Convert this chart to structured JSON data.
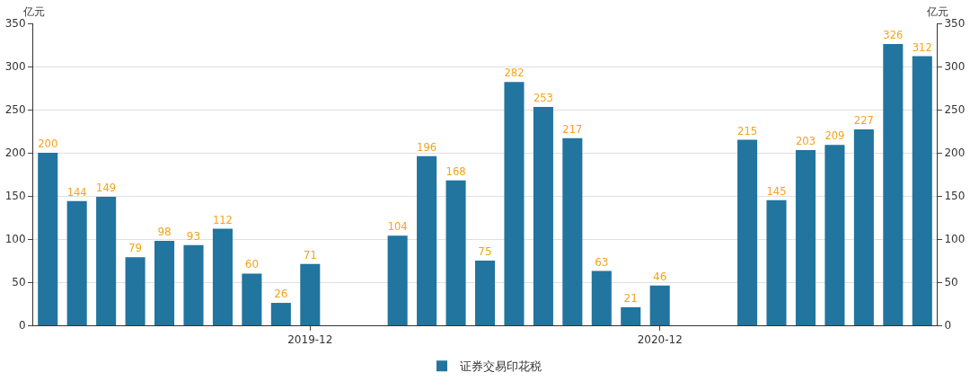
{
  "chart_data": {
    "type": "bar",
    "categories": [
      null,
      null,
      null,
      null,
      null,
      null,
      null,
      null,
      null,
      "2019-12",
      null,
      null,
      null,
      null,
      null,
      null,
      null,
      null,
      null,
      null,
      null,
      "2020-12",
      null,
      null,
      null,
      null,
      null,
      null,
      null,
      null,
      null
    ],
    "series": [
      {
        "name": "证券交易印花税",
        "color": "#21759f",
        "values": [
          200,
          144,
          149,
          79,
          98,
          93,
          112,
          60,
          26,
          71,
          null,
          null,
          104,
          196,
          168,
          75,
          282,
          253,
          217,
          63,
          21,
          46,
          null,
          null,
          215,
          145,
          203,
          209,
          227,
          326,
          312
        ]
      }
    ],
    "ylabel": "亿元",
    "y2label": "亿元",
    "ylim": [
      0,
      350
    ],
    "yticks": [
      0,
      50,
      100,
      150,
      200,
      250,
      300,
      350
    ],
    "y2lim": [
      0,
      350
    ],
    "y2ticks": [
      0,
      50,
      100,
      150,
      200,
      250,
      300,
      350
    ],
    "grid": "y",
    "legend": "bottom",
    "data_labels": true
  }
}
